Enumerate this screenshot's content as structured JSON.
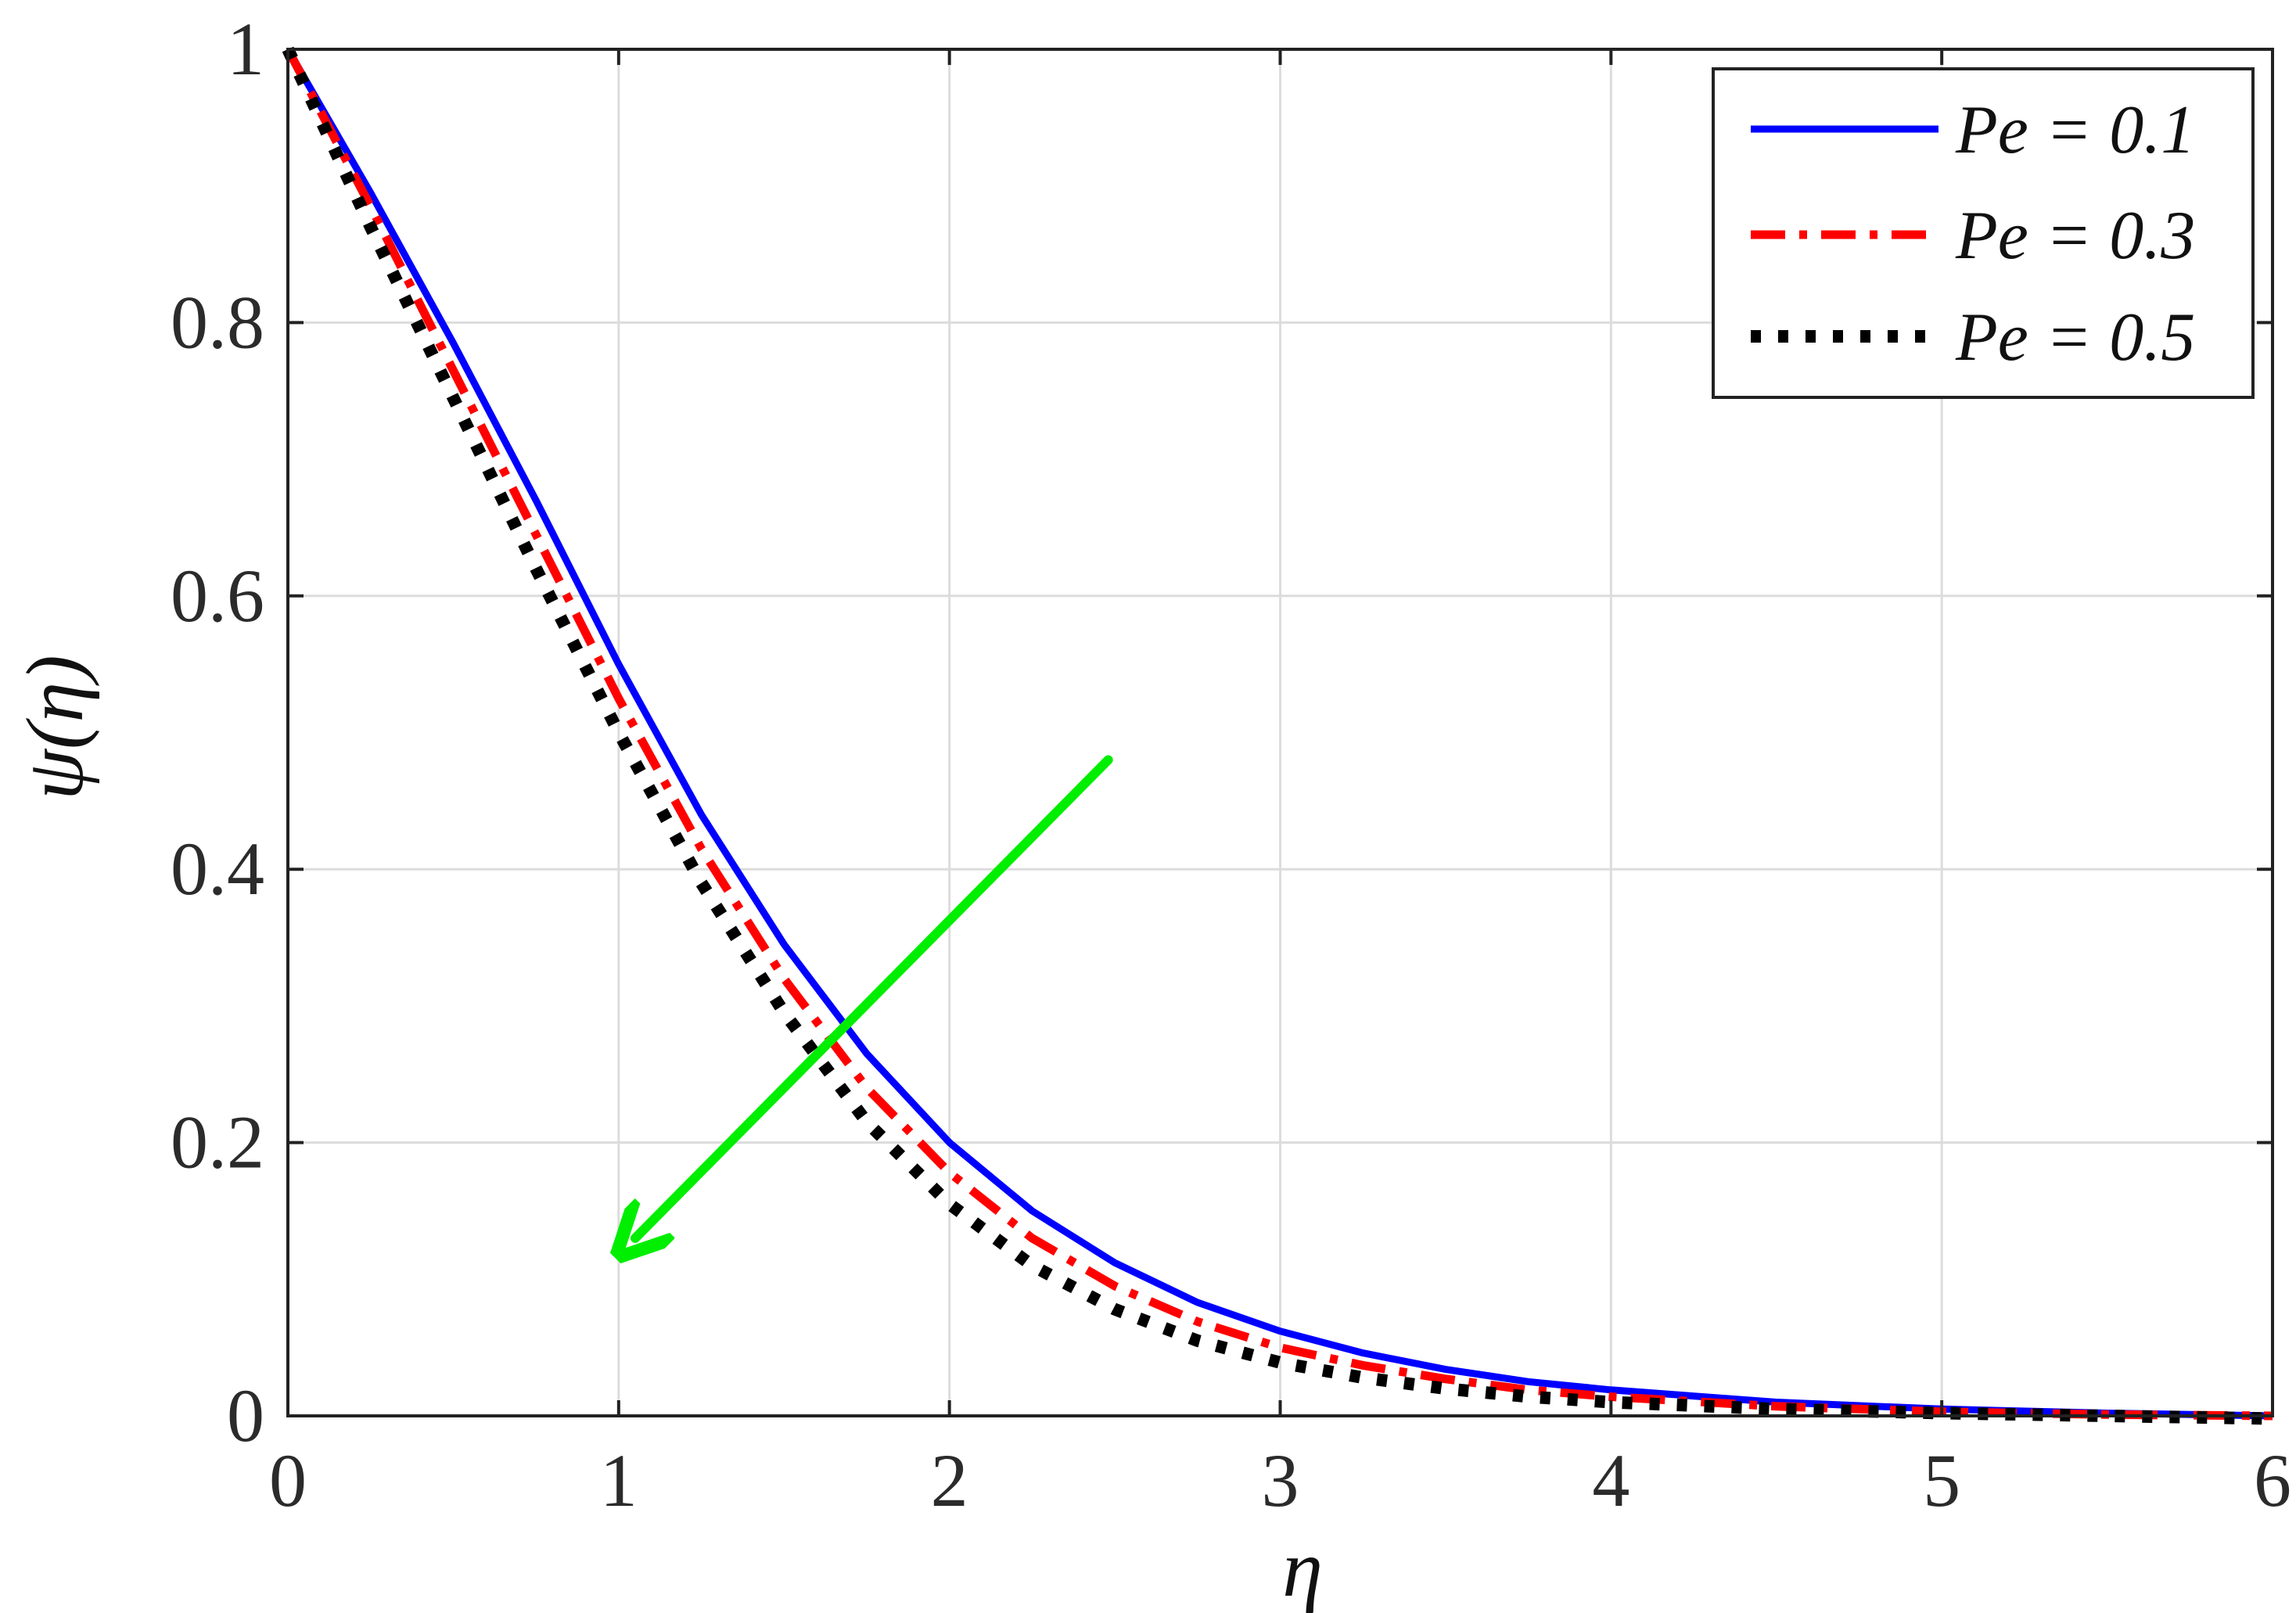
{
  "chart_data": {
    "type": "line",
    "title": "",
    "xlabel": "η",
    "ylabel": "ψ(η)",
    "xlim": [
      0,
      6
    ],
    "ylim": [
      0,
      1
    ],
    "xticks": [
      "0",
      "1",
      "2",
      "3",
      "4",
      "5",
      "6"
    ],
    "yticks": [
      "0",
      "0.2",
      "0.4",
      "0.6",
      "0.8",
      "1"
    ],
    "grid": true,
    "legend_position": "top-right",
    "series": [
      {
        "name": "Pe = 0.1",
        "color": "#0000ff",
        "style": "solid",
        "x": [
          0,
          0.25,
          0.5,
          0.75,
          1.0,
          1.25,
          1.5,
          1.75,
          2.0,
          2.25,
          2.5,
          2.75,
          3.0,
          3.25,
          3.5,
          3.75,
          4.0,
          4.5,
          5.0,
          5.5,
          6.0
        ],
        "y": [
          1.0,
          0.895,
          0.785,
          0.67,
          0.55,
          0.44,
          0.345,
          0.265,
          0.2,
          0.15,
          0.112,
          0.083,
          0.062,
          0.046,
          0.034,
          0.025,
          0.019,
          0.01,
          0.005,
          0.002,
          0.0
        ]
      },
      {
        "name": "Pe = 0.3",
        "color": "#ff0000",
        "style": "dashdot",
        "x": [
          0,
          0.25,
          0.5,
          0.75,
          1.0,
          1.25,
          1.5,
          1.75,
          2.0,
          2.25,
          2.5,
          2.75,
          3.0,
          3.25,
          3.5,
          3.75,
          4.0,
          4.5,
          5.0,
          5.5,
          6.0
        ],
        "y": [
          1.0,
          0.885,
          0.765,
          0.645,
          0.525,
          0.415,
          0.32,
          0.24,
          0.178,
          0.13,
          0.095,
          0.069,
          0.05,
          0.037,
          0.027,
          0.019,
          0.014,
          0.007,
          0.003,
          0.001,
          0.0
        ]
      },
      {
        "name": "Pe = 0.5",
        "color": "#000000",
        "style": "dotted",
        "x": [
          0,
          0.25,
          0.5,
          0.75,
          1.0,
          1.25,
          1.5,
          1.75,
          2.0,
          2.25,
          2.5,
          2.75,
          3.0,
          3.25,
          3.5,
          3.75,
          4.0,
          4.5,
          5.0,
          5.5,
          6.0
        ],
        "y": [
          1.0,
          0.87,
          0.745,
          0.62,
          0.5,
          0.39,
          0.295,
          0.215,
          0.155,
          0.11,
          0.078,
          0.055,
          0.039,
          0.028,
          0.02,
          0.014,
          0.01,
          0.005,
          0.002,
          0.0,
          -0.002
        ]
      }
    ],
    "annotations": [
      {
        "type": "arrow",
        "color": "#00ee00",
        "from": [
          2.48,
          0.48
        ],
        "to": [
          1.05,
          0.13
        ]
      }
    ]
  }
}
